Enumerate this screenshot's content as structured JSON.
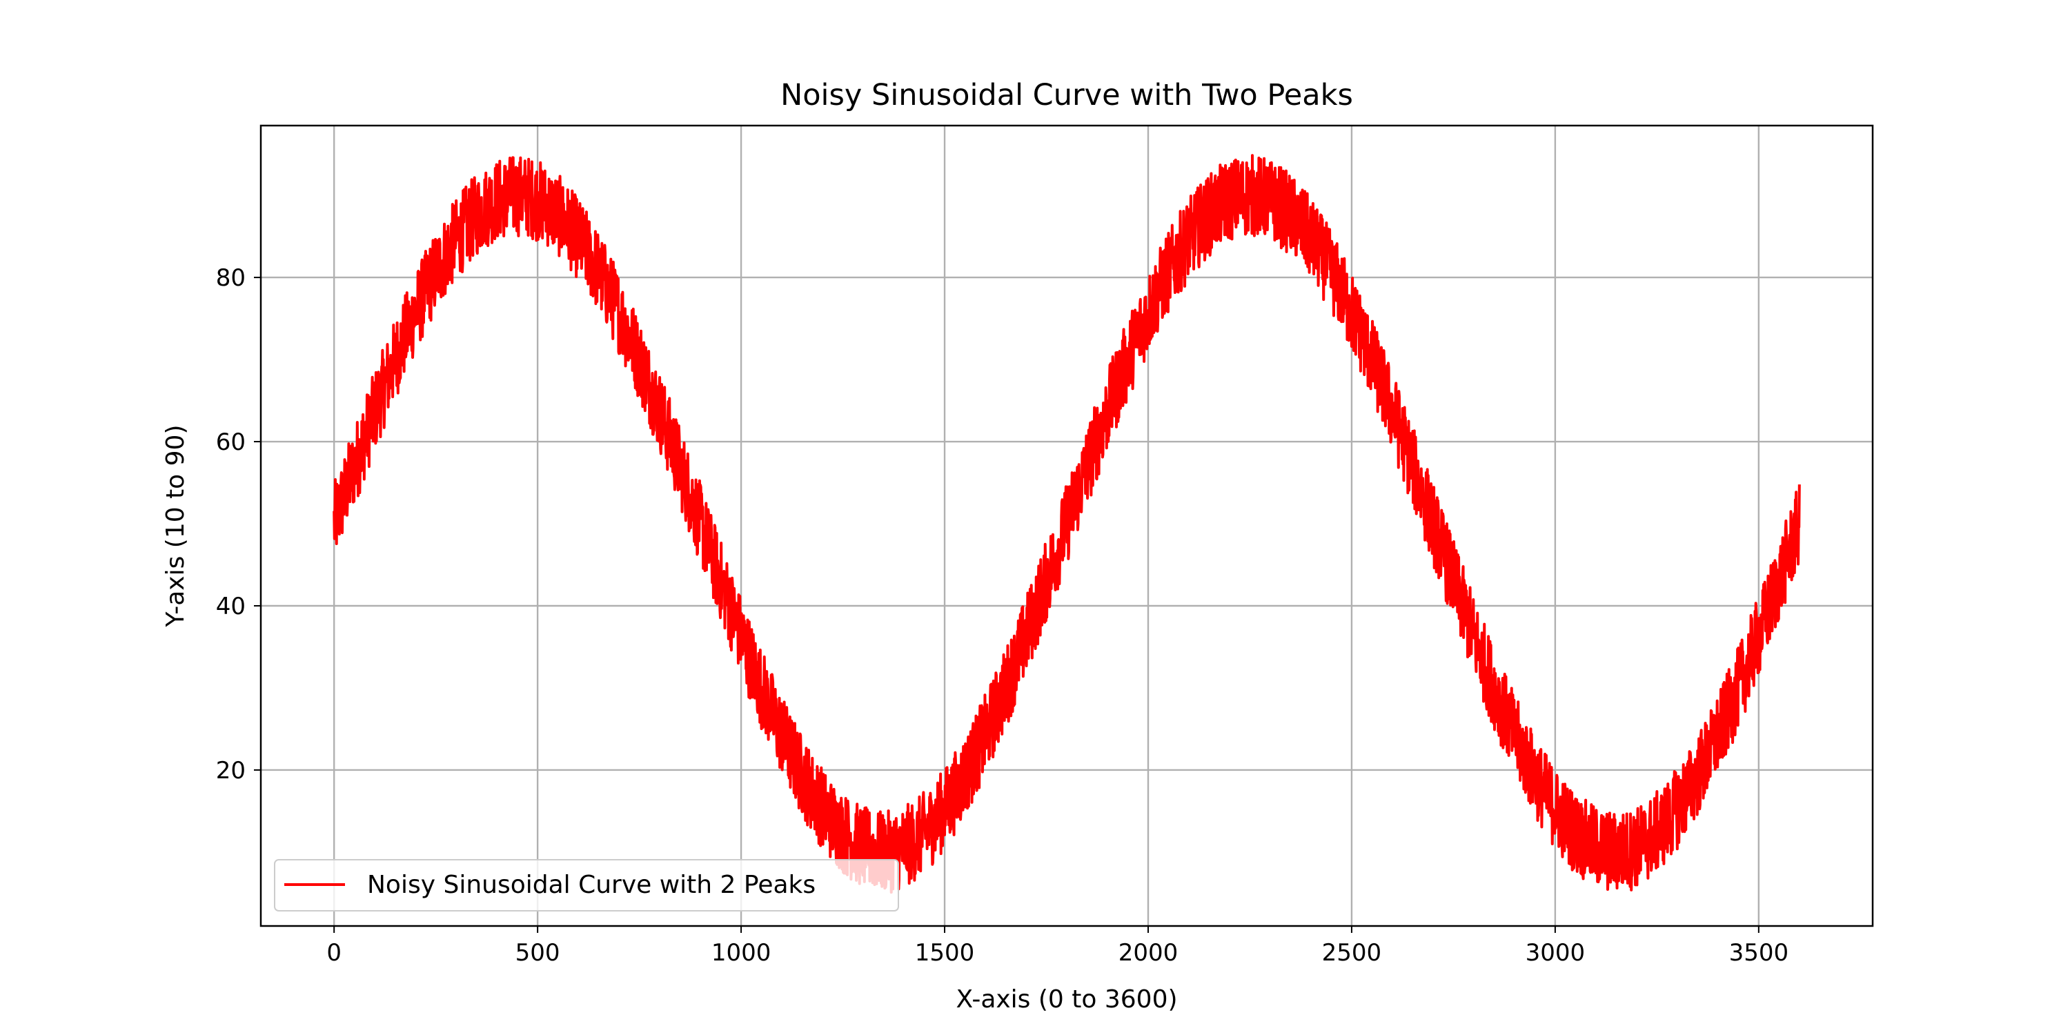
{
  "chart_data": {
    "type": "line",
    "title": "Noisy Sinusoidal Curve with Two Peaks",
    "xlabel": "X-axis (0 to 3600)",
    "ylabel": "Y-axis (10 to 90)",
    "xlim": [
      -180,
      3780
    ],
    "ylim": [
      1,
      98.5
    ],
    "x_ticks": [
      0,
      500,
      1000,
      1500,
      2000,
      2500,
      3000,
      3500
    ],
    "y_ticks": [
      20,
      40,
      60,
      80
    ],
    "grid": true,
    "legend_position": "lower-left",
    "series": [
      {
        "name": "Noisy Sinusoidal Curve with 2 Peaks",
        "color": "#ff0000",
        "x_range": [
          0,
          3600
        ],
        "mean": 50,
        "amplitude": 40,
        "peaks": 2,
        "noise": 5,
        "sample_points": [
          {
            "x": 0,
            "y": 50
          },
          {
            "x": 450,
            "y": 90
          },
          {
            "x": 900,
            "y": 50
          },
          {
            "x": 1350,
            "y": 10
          },
          {
            "x": 1800,
            "y": 50
          },
          {
            "x": 2250,
            "y": 90
          },
          {
            "x": 2700,
            "y": 50
          },
          {
            "x": 3150,
            "y": 10
          },
          {
            "x": 3600,
            "y": 50
          }
        ]
      }
    ]
  }
}
